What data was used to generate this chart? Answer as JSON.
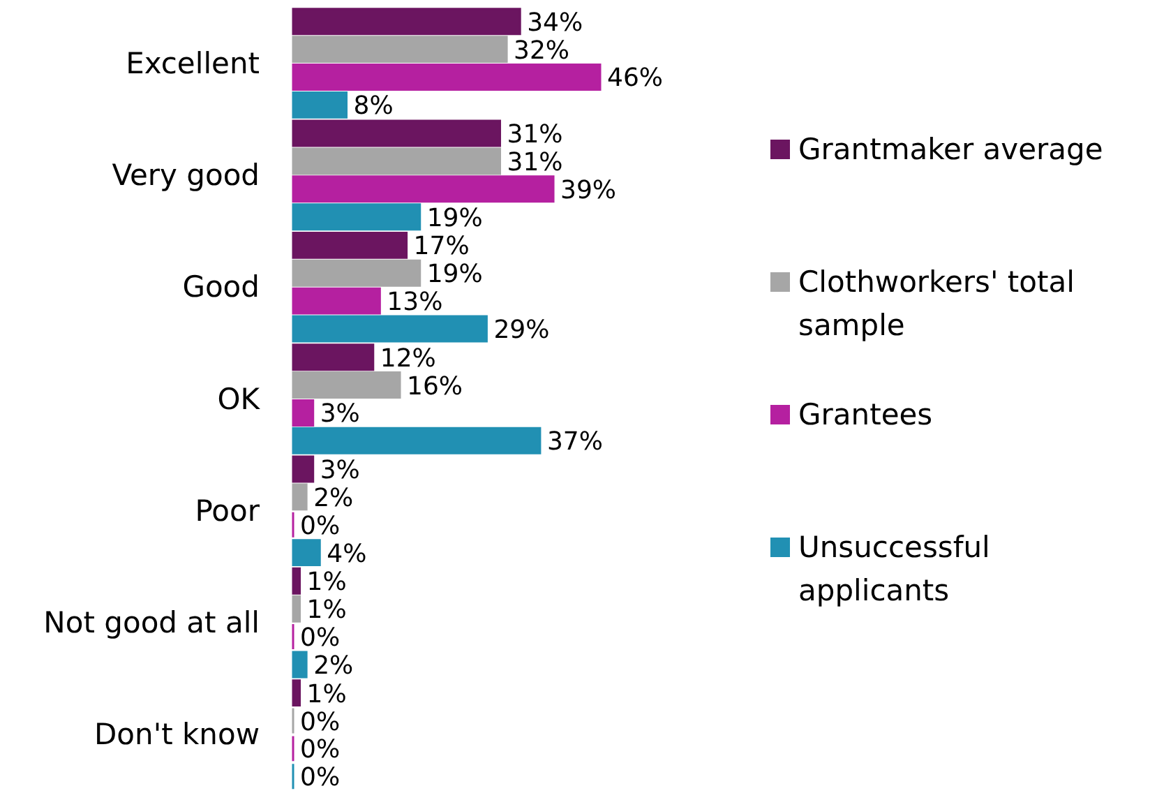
{
  "chart_data": {
    "type": "bar",
    "orientation": "horizontal",
    "categories": [
      "Excellent",
      "Very good",
      "Good",
      "OK",
      "Poor",
      "Not good at all",
      "Don't know"
    ],
    "series": [
      {
        "name": "Grantmaker average",
        "color": "#6b1560",
        "values": [
          34,
          31,
          17,
          12,
          3,
          1,
          1
        ],
        "value_labels": [
          "34%",
          "31%",
          "17%",
          "12%",
          "3%",
          "1%",
          "1%"
        ]
      },
      {
        "name": "Clothworkers' total sample",
        "color": "#a6a6a6",
        "values": [
          32,
          31,
          19,
          16,
          2,
          1,
          0
        ],
        "value_labels": [
          "32%",
          "31%",
          "19%",
          "16%",
          "2%",
          "1%",
          "0%"
        ]
      },
      {
        "name": "Grantees",
        "color": "#b520a0",
        "values": [
          46,
          39,
          13,
          3,
          0,
          0,
          0
        ],
        "value_labels": [
          "46%",
          "39%",
          "13%",
          "3%",
          "0%",
          "0%",
          "0%"
        ]
      },
      {
        "name": "Unsuccessful applicants",
        "color": "#2190b3",
        "values": [
          8,
          19,
          29,
          37,
          4,
          2,
          0
        ],
        "value_labels": [
          "8%",
          "19%",
          "29%",
          "37%",
          "4%",
          "2%",
          "0%"
        ]
      }
    ],
    "legend": "right"
  }
}
